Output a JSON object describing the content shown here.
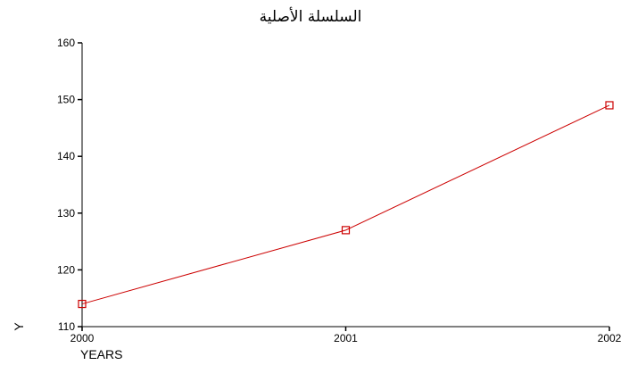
{
  "chart_data": {
    "type": "line",
    "title": "السلسلة الأصلية",
    "xlabel": "YEARS",
    "ylabel": "Y",
    "x": [
      "2000",
      "2001",
      "2002"
    ],
    "series": [
      {
        "values": [
          114,
          127,
          149
        ],
        "color": "#cc0000",
        "marker": "square"
      }
    ],
    "ylim": [
      110,
      160
    ],
    "yticks": [
      110,
      120,
      130,
      140,
      150,
      160
    ],
    "grid": false,
    "legend": "none"
  }
}
